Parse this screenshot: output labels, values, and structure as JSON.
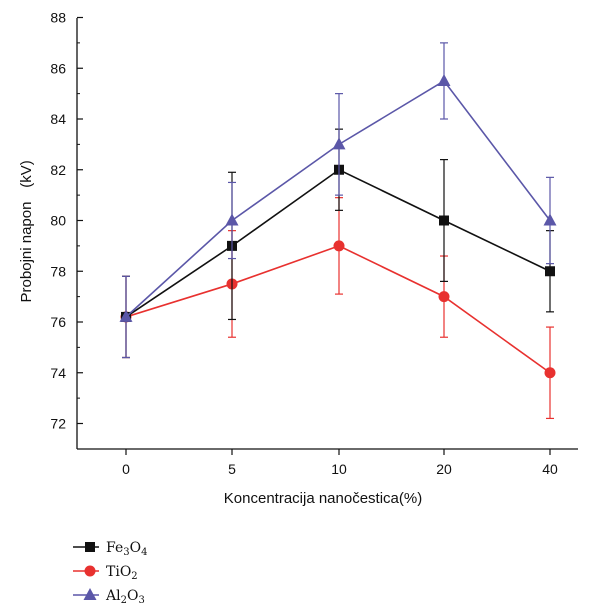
{
  "chart_data": {
    "type": "line",
    "xlabel": "Koncentracija nanočestica(%)",
    "ylabel": "Probojni napon",
    "ylabel_unit": "(kV)",
    "categories": [
      "0",
      "5",
      "10",
      "20",
      "40"
    ],
    "ylim": [
      71,
      88
    ],
    "yticks": [
      72,
      74,
      76,
      78,
      80,
      82,
      84,
      86,
      88
    ],
    "grid": false,
    "legend_position": "bottom-left, below plot",
    "series": [
      {
        "name": "Fe3O4",
        "label": [
          "Fe",
          "3",
          "O",
          "4"
        ],
        "color": "#111111",
        "marker": "square",
        "values": [
          76.2,
          79.0,
          82.0,
          80.0,
          78.0
        ],
        "err": [
          1.6,
          2.9,
          1.6,
          2.4,
          1.6
        ]
      },
      {
        "name": "TiO2",
        "label": [
          "TiO",
          "2"
        ],
        "color": "#e8312f",
        "marker": "circle",
        "values": [
          76.2,
          77.5,
          79.0,
          77.0,
          74.0
        ],
        "err": [
          1.6,
          2.1,
          1.9,
          1.6,
          1.8
        ]
      },
      {
        "name": "Al2O3",
        "label": [
          "Al",
          "2",
          "O",
          "3"
        ],
        "color": "#5b57a8",
        "marker": "triangle",
        "values": [
          76.2,
          80.0,
          83.0,
          85.5,
          80.0
        ],
        "err": [
          1.6,
          1.5,
          2.0,
          1.5,
          1.7
        ]
      }
    ]
  }
}
